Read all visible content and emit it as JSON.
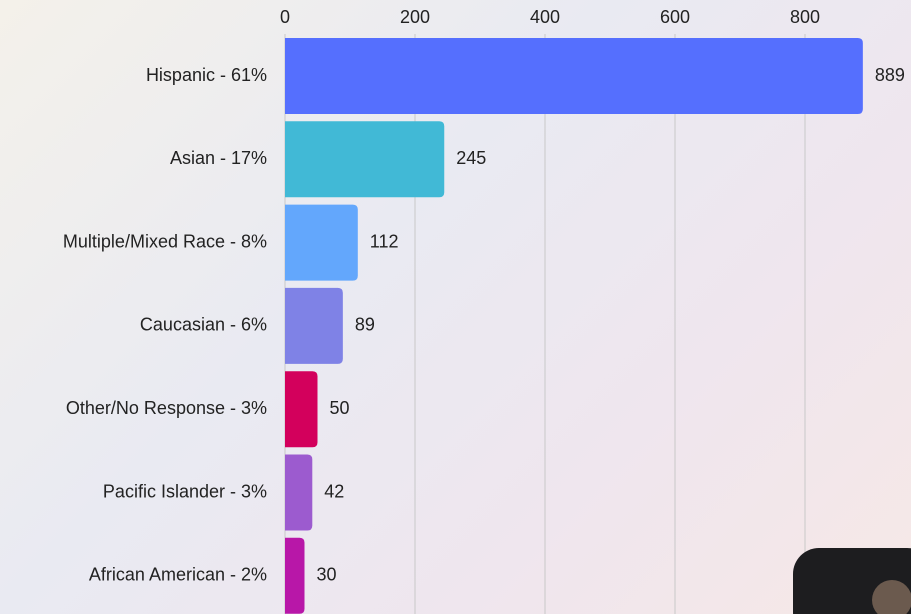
{
  "chart_data": {
    "type": "bar",
    "orientation": "horizontal",
    "categories": [
      "Hispanic - 61%",
      "Asian - 17%",
      "Multiple/Mixed Race - 8%",
      "Caucasian - 6%",
      "Other/No Response - 3%",
      "Pacific Islander - 3%",
      "African American - 2%"
    ],
    "values": [
      889,
      245,
      112,
      89,
      50,
      42,
      30
    ],
    "colors": [
      "#556ffe",
      "#41b9d6",
      "#63a7fc",
      "#7f82e6",
      "#d3005c",
      "#9c5bcf",
      "#b817a8"
    ],
    "xlim": [
      0,
      900
    ],
    "xticks": [
      0,
      200,
      400,
      600,
      800
    ],
    "grid": true
  }
}
